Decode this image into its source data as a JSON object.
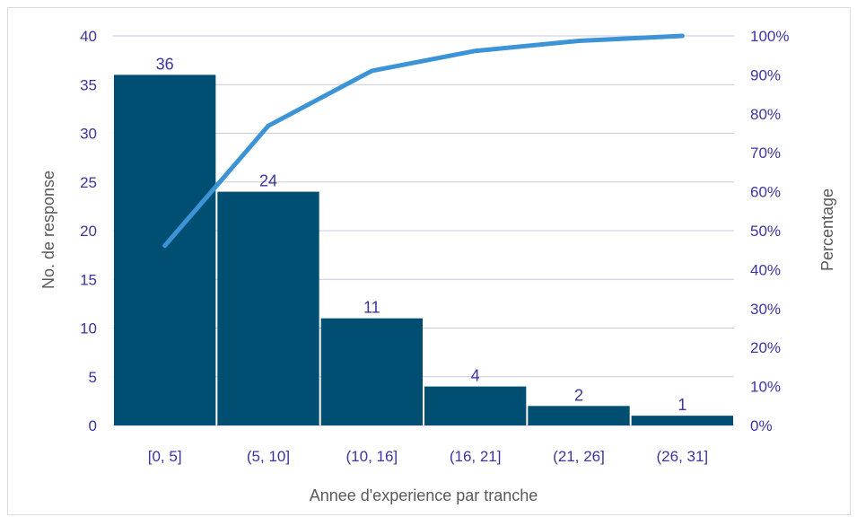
{
  "chart_data": {
    "type": "bar",
    "categories": [
      "[0, 5]",
      "(5, 10]",
      "(10, 16]",
      "(16, 21]",
      "(21, 26]",
      "(26, 31]"
    ],
    "values": [
      36,
      24,
      11,
      4,
      2,
      1
    ],
    "data_labels": [
      "36",
      "24",
      "11",
      "4",
      "2",
      "1"
    ],
    "cumulative_percent": [
      46.15,
      76.92,
      91.03,
      96.15,
      98.72,
      100
    ],
    "xlabel": "Annee d'experience par tranche",
    "ylabel": "No. de response",
    "y2label": "Percentage",
    "ylim": [
      0,
      40
    ],
    "y2lim": [
      0,
      100
    ],
    "yticks": [
      "0",
      "5",
      "10",
      "15",
      "20",
      "25",
      "30",
      "35",
      "40"
    ],
    "y2ticks": [
      "0%",
      "10%",
      "20%",
      "30%",
      "40%",
      "50%",
      "60%",
      "70%",
      "80%",
      "90%",
      "100%"
    ],
    "grid": true,
    "colors": {
      "bar": "#004e72",
      "line": "#3c94d6",
      "grid": "#c9c9e0",
      "tick": "#3b35a0",
      "title": "#595959"
    }
  }
}
